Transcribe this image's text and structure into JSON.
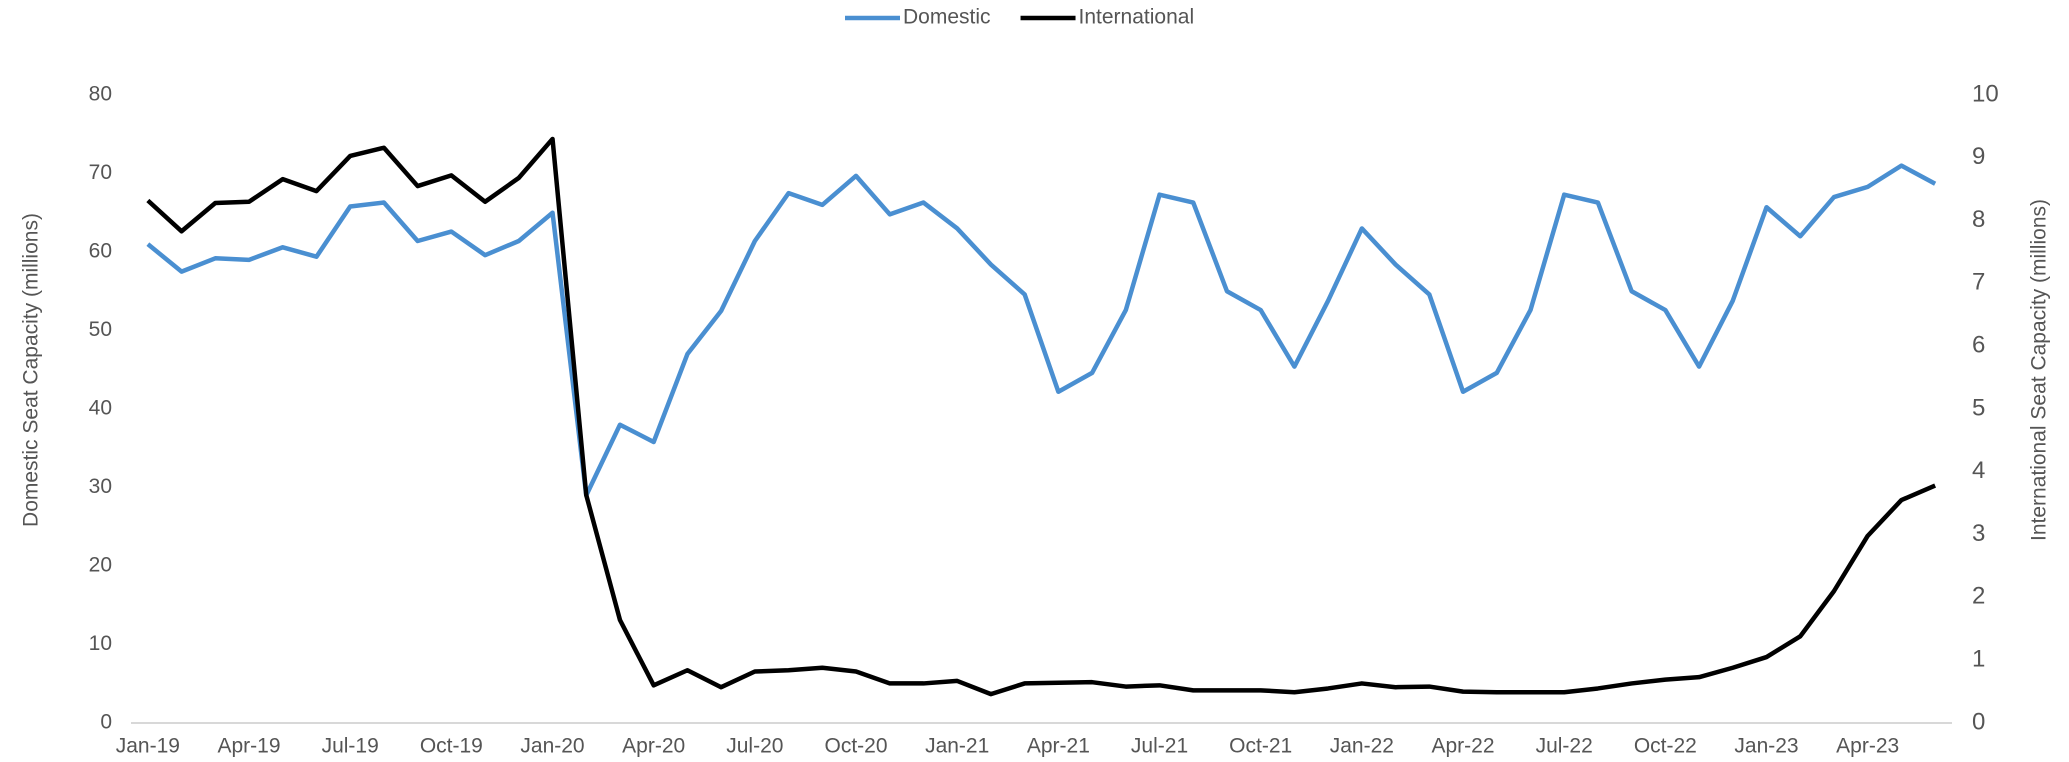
{
  "chart_data": {
    "type": "line",
    "categories": [
      "Jan-19",
      null,
      null,
      "Apr-19",
      null,
      null,
      "Jul-19",
      null,
      null,
      "Oct-19",
      null,
      null,
      "Jan-20",
      null,
      null,
      "Apr-20",
      null,
      null,
      "Jul-20",
      null,
      null,
      "Oct-20",
      null,
      null,
      "Jan-21",
      null,
      null,
      "Apr-21",
      null,
      null,
      "Jul-21",
      null,
      null,
      "Oct-21",
      null,
      null,
      "Jan-22",
      null,
      null,
      "Apr-22",
      null,
      null,
      "Jul-22",
      null,
      null,
      "Oct-22",
      null,
      null,
      "Jan-23",
      null,
      null,
      "Apr-23",
      null,
      null
    ],
    "series": [
      {
        "name": "Domestic",
        "color": "#4a8fd1",
        "values": [
          61,
          57.5,
          59.2,
          59,
          60.6,
          59.4,
          65.8,
          66.3,
          61.4,
          62.6,
          59.6,
          61.4,
          65,
          29,
          38,
          35.8,
          47,
          52.5,
          61.4,
          67.5,
          66,
          69.7,
          64.8,
          66.3,
          63,
          58.4,
          54.6,
          42.2,
          44.6,
          52.6,
          67.3,
          66.3,
          55,
          52.6,
          45.4,
          53.8,
          63,
          58.4,
          54.6,
          42.2,
          44.6,
          52.6,
          67.3,
          66.3,
          55,
          52.6,
          45.4,
          53.8,
          65.7,
          62,
          67,
          68.3,
          71,
          68.7
        ]
      },
      {
        "name": "International",
        "color": "#000000",
        "axis": "y2",
        "values": [
          8.32,
          7.83,
          8.28,
          8.3,
          8.66,
          8.47,
          9.03,
          9.16,
          8.55,
          8.72,
          8.3,
          8.68,
          9.3,
          3.63,
          1.64,
          0.6,
          0.84,
          0.57,
          0.82,
          0.84,
          0.88,
          0.82,
          0.63,
          0.63,
          0.67,
          0.46,
          0.63,
          0.64,
          0.65,
          0.58,
          0.6,
          0.52,
          0.52,
          0.52,
          0.49,
          0.55,
          0.63,
          0.57,
          0.58,
          0.5,
          0.49,
          0.49,
          0.49,
          0.55,
          0.63,
          0.69,
          0.73,
          0.88,
          1.05,
          1.38,
          2.1,
          2.98,
          3.55,
          3.78
        ]
      }
    ],
    "ylabel": "Domestic Seat Capacity (millions)",
    "y2label": "International Seat Capacity (millions)",
    "ylim": [
      0,
      80
    ],
    "yticks": [
      0,
      10,
      20,
      30,
      40,
      50,
      60,
      70,
      80
    ],
    "y2lim": [
      0,
      10
    ],
    "y2ticks": [
      0,
      1,
      2,
      3,
      4,
      5,
      6,
      7,
      8,
      9,
      10
    ],
    "legend": "top"
  }
}
